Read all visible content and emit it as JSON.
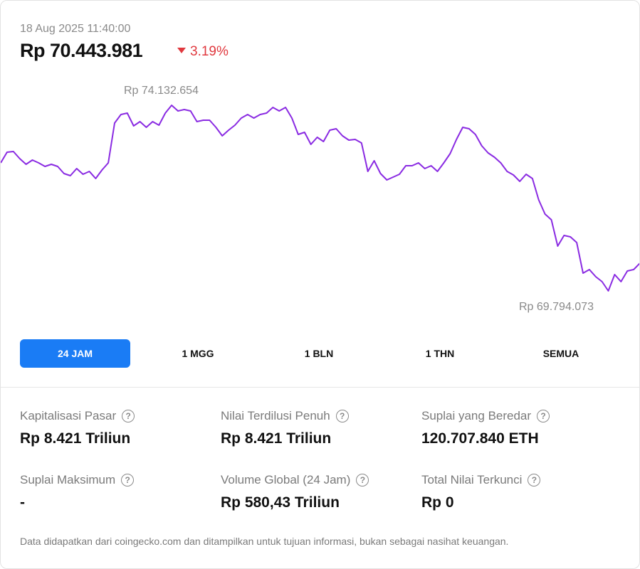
{
  "header": {
    "datetime": "18 Aug 2025 11:40:00",
    "price": "Rp 70.443.981",
    "change": "3.19%"
  },
  "chart_data": {
    "type": "line",
    "color": "#8a2be2",
    "values": [
      72786000,
      73036000,
      73052000,
      72886000,
      72753000,
      72853000,
      72786000,
      72703000,
      72753000,
      72703000,
      72537000,
      72487000,
      72653000,
      72520000,
      72587000,
      72420000,
      72620000,
      72786000,
      73717000,
      73917000,
      73950000,
      73651000,
      73750000,
      73617000,
      73750000,
      73667000,
      73950000,
      74132654,
      74000000,
      74033000,
      74000000,
      73750000,
      73784000,
      73784000,
      73617000,
      73418000,
      73551000,
      73667000,
      73833000,
      73917000,
      73833000,
      73917000,
      73950000,
      74083000,
      74000000,
      74083000,
      73833000,
      73451000,
      73501000,
      73218000,
      73385000,
      73285000,
      73551000,
      73584000,
      73418000,
      73318000,
      73335000,
      73252000,
      72587000,
      72836000,
      72537000,
      72387000,
      72454000,
      72520000,
      72720000,
      72720000,
      72786000,
      72653000,
      72720000,
      72587000,
      72786000,
      73002000,
      73335000,
      73617000,
      73584000,
      73451000,
      73185000,
      73019000,
      72919000,
      72786000,
      72587000,
      72504000,
      72354000,
      72520000,
      72420000,
      71922000,
      71589000,
      71456000,
      70841000,
      71091000,
      71057000,
      70924000,
      70210000,
      70293000,
      70127000,
      70010000,
      69794073,
      70176000,
      70010000,
      70260000,
      70293000,
      70443981
    ],
    "high_label": "Rp 74.132.654",
    "low_label": "Rp 69.794.073"
  },
  "tabs": [
    "24 JAM",
    "1 MGG",
    "1 BLN",
    "1 THN",
    "SEMUA"
  ],
  "stats": [
    {
      "label": "Kapitalisasi Pasar",
      "value": "Rp 8.421 Triliun"
    },
    {
      "label": "Nilai Terdilusi Penuh",
      "value": "Rp 8.421 Triliun"
    },
    {
      "label": "Suplai yang Beredar",
      "value": "120.707.840 ETH"
    },
    {
      "label": "Suplai Maksimum",
      "value": "-"
    },
    {
      "label": "Volume Global (24 Jam)",
      "value": "Rp 580,43 Triliun"
    },
    {
      "label": "Total Nilai Terkunci",
      "value": "Rp 0"
    }
  ],
  "footer": "Data didapatkan dari coingecko.com dan ditampilkan untuk tujuan informasi, bukan sebagai nasihat keuangan."
}
